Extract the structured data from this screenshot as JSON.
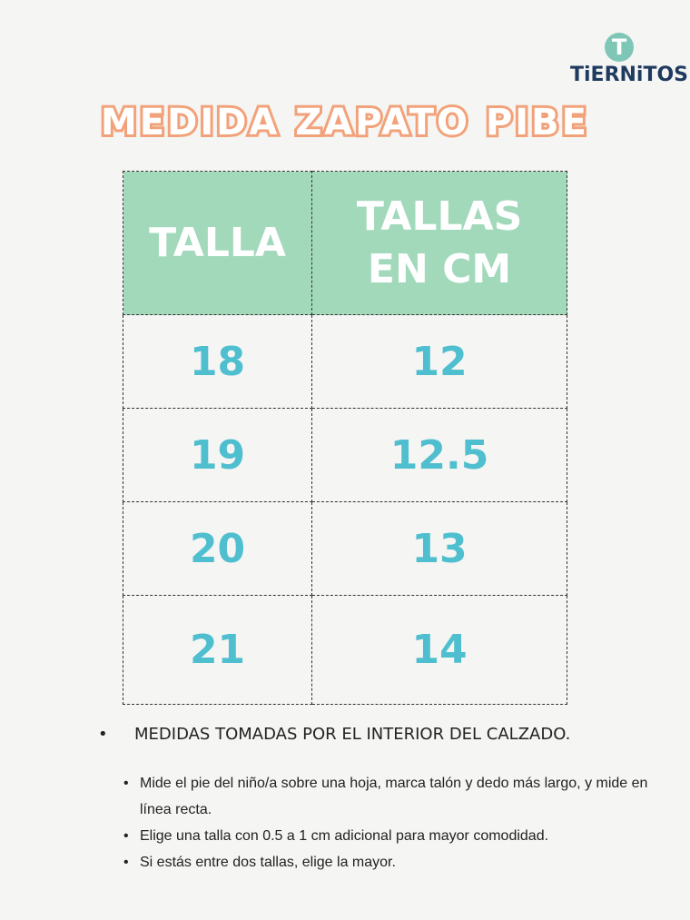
{
  "brand": {
    "logo_text": "TiERNiTOS",
    "logo_mark": "T"
  },
  "title": "MEDIDA ZAPATO PIBE",
  "colors": {
    "header_bg": "#a2d9bb",
    "number": "#4fbfcf",
    "title_stroke": "#f2a27a",
    "logo": "#1f3a5f"
  },
  "table": {
    "headers": [
      "TALLA",
      "TALLAS EN CM"
    ],
    "rows": [
      [
        "18",
        "12"
      ],
      [
        "19",
        "12.5"
      ],
      [
        "20",
        "13"
      ],
      [
        "21",
        "14"
      ]
    ]
  },
  "note": "MEDIDAS TOMADAS POR EL INTERIOR DEL CALZADO.",
  "tips": [
    "Mide el pie del niño/a sobre una hoja, marca talón y dedo más largo, y mide en línea recta.",
    "Elige una talla con 0.5 a 1 cm adicional para mayor comodidad.",
    "Si estás entre dos tallas, elige la mayor."
  ]
}
